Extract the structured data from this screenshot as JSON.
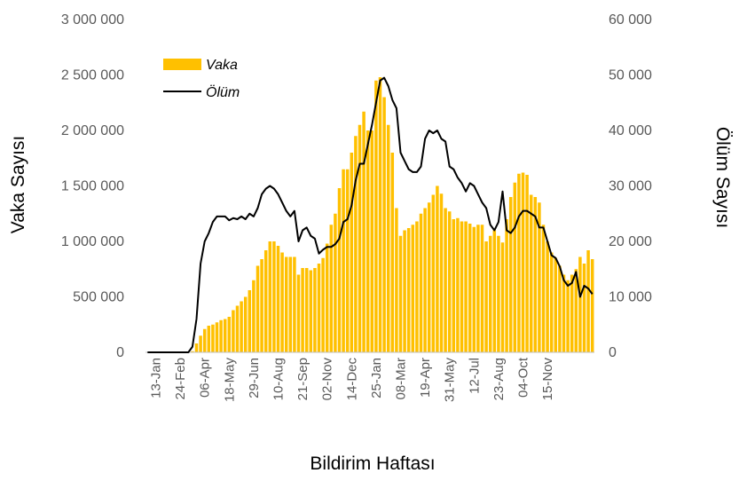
{
  "chart_data": {
    "type": "bar",
    "xlabel": "Bildirim Haftası",
    "ylabel_left": "Vaka Sayısı",
    "ylabel_right": "Ölüm Sayısı",
    "ylim_left": [
      0,
      3000000
    ],
    "ylim_right": [
      0,
      60000
    ],
    "yticks_left": [
      "0",
      "500 000",
      "1 000 000",
      "1 500 000",
      "2 000 000",
      "2 500 000",
      "3 000 000"
    ],
    "yticks_right": [
      "0",
      "10 000",
      "20 000",
      "30 000",
      "40 000",
      "50 000",
      "60 000"
    ],
    "x_tick_labels": [
      "13-Jan",
      "24-Feb",
      "06-Apr",
      "18-May",
      "29-Jun",
      "10-Aug",
      "21-Sep",
      "02-Nov",
      "14-Dec",
      "25-Jan",
      "08-Mar",
      "19-Apr",
      "31-May",
      "12-Jul",
      "23-Aug",
      "04-Oct",
      "15-Nov"
    ],
    "legend_position": "top-left",
    "grid": false,
    "colors": {
      "bars": "#ffc000",
      "line": "#000000",
      "text": "#595959"
    },
    "series": [
      {
        "name": "Vaka",
        "type": "bar",
        "axis": "left",
        "values": [
          0,
          0,
          0,
          0,
          0,
          0,
          0,
          0,
          0,
          0,
          0,
          10000,
          80000,
          150000,
          210000,
          240000,
          250000,
          270000,
          290000,
          300000,
          320000,
          380000,
          420000,
          460000,
          500000,
          560000,
          650000,
          780000,
          840000,
          920000,
          1000000,
          1000000,
          960000,
          900000,
          860000,
          860000,
          860000,
          700000,
          760000,
          760000,
          740000,
          760000,
          800000,
          850000,
          980000,
          1150000,
          1250000,
          1480000,
          1650000,
          1650000,
          1800000,
          1950000,
          2050000,
          2170000,
          2000000,
          2000000,
          2450000,
          2480000,
          2300000,
          2050000,
          1800000,
          1300000,
          1050000,
          1100000,
          1120000,
          1150000,
          1180000,
          1250000,
          1300000,
          1350000,
          1420000,
          1500000,
          1430000,
          1300000,
          1270000,
          1200000,
          1210000,
          1180000,
          1180000,
          1160000,
          1130000,
          1150000,
          1150000,
          1000000,
          1050000,
          1100000,
          1050000,
          990000,
          1200000,
          1400000,
          1530000,
          1610000,
          1620000,
          1600000,
          1420000,
          1400000,
          1350000,
          1150000,
          1000000,
          900000,
          850000,
          780000,
          700000,
          650000,
          700000,
          750000,
          860000,
          800000,
          920000,
          840000
        ]
      },
      {
        "name": "Ölüm",
        "type": "line",
        "axis": "right",
        "values": [
          0,
          0,
          0,
          0,
          0,
          0,
          0,
          0,
          0,
          0,
          0,
          1000,
          6000,
          16000,
          20000,
          21500,
          23500,
          24500,
          24500,
          24500,
          23800,
          24200,
          24000,
          24500,
          24000,
          25000,
          24500,
          26000,
          28500,
          29500,
          30000,
          29500,
          28500,
          27000,
          25500,
          24500,
          25500,
          20000,
          22000,
          22500,
          21000,
          20500,
          17800,
          18500,
          19000,
          19000,
          19500,
          20500,
          23500,
          24000,
          26500,
          31000,
          34000,
          34000,
          37500,
          41000,
          45000,
          49000,
          49500,
          48000,
          45500,
          44000,
          36000,
          34500,
          33000,
          32500,
          32500,
          33500,
          38500,
          40000,
          39500,
          40000,
          38500,
          38000,
          33500,
          33000,
          31500,
          30500,
          29000,
          30500,
          30000,
          28500,
          27000,
          26000,
          23000,
          22000,
          23500,
          29000,
          22000,
          21500,
          22500,
          24500,
          25500,
          25500,
          25000,
          24500,
          22500,
          22500,
          20000,
          17500,
          17000,
          15500,
          13000,
          12000,
          12500,
          14500,
          10000,
          12000,
          11500,
          10500
        ]
      }
    ]
  }
}
